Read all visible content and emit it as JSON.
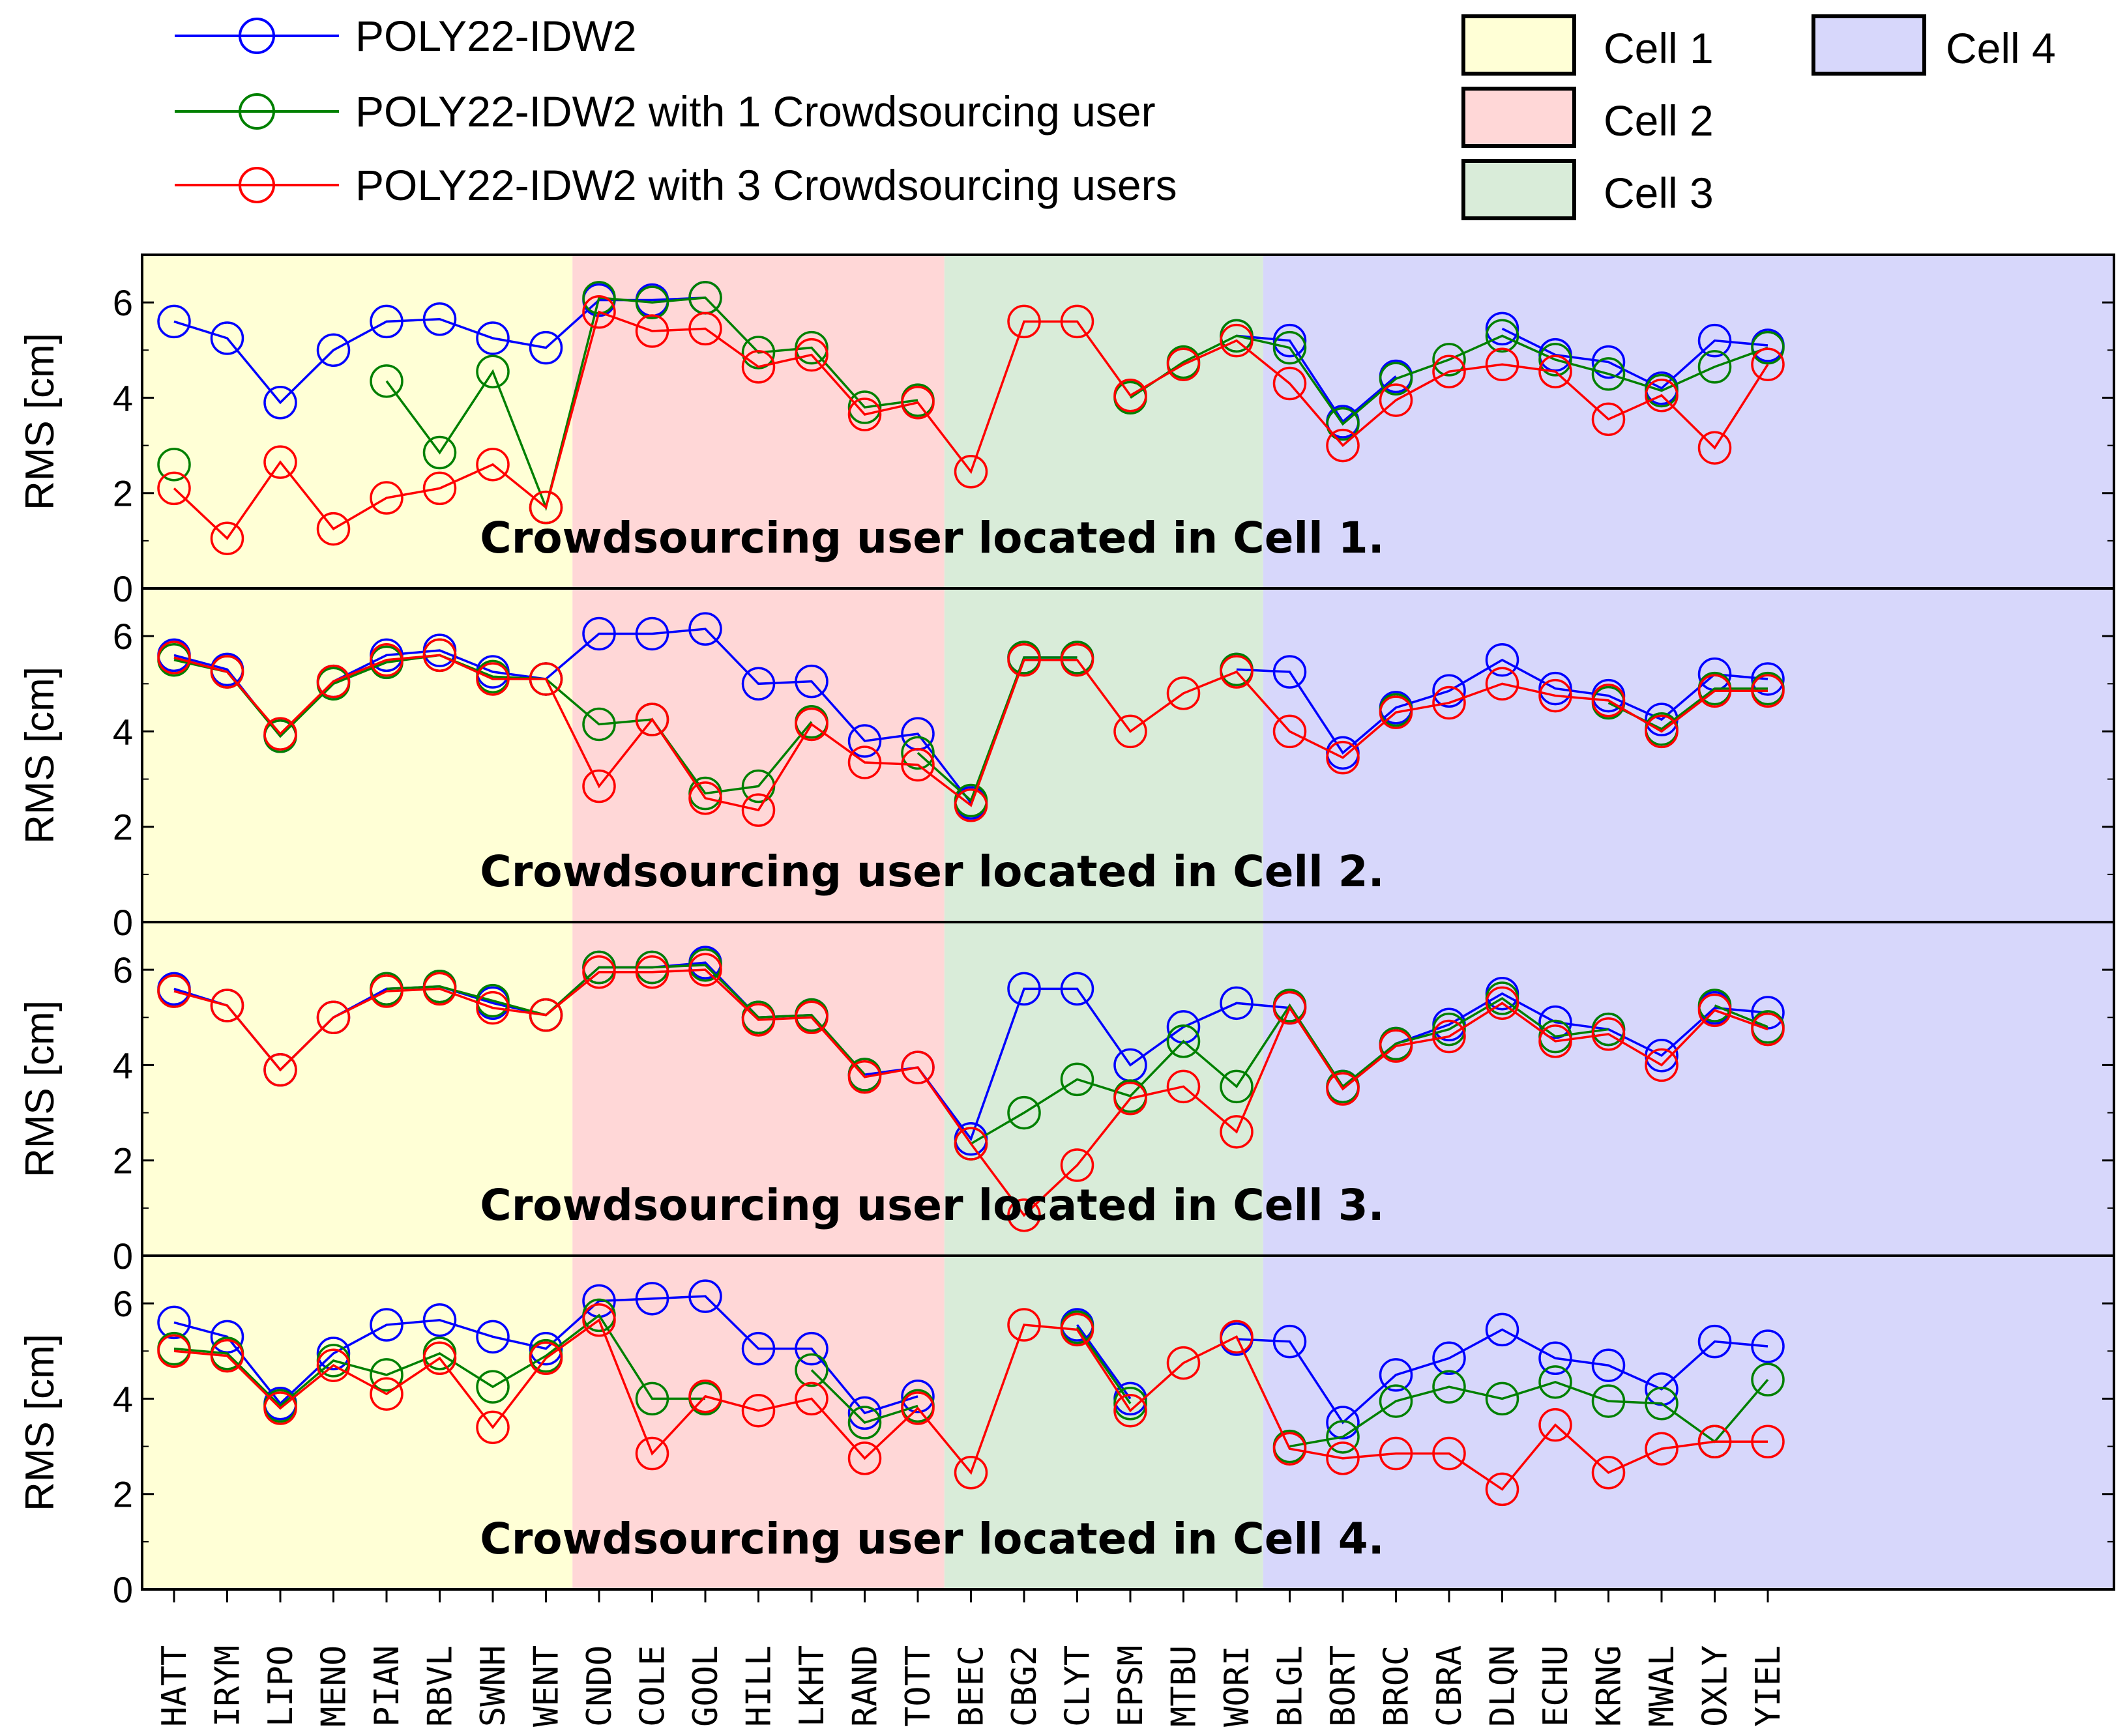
{
  "colors": {
    "series": [
      "#0000ff",
      "#008000",
      "#ff0000"
    ],
    "cells": [
      "#ffffd6",
      "#ffd7d7",
      "#d9ecd9",
      "#d7d7fb"
    ]
  },
  "legend": {
    "cells": [
      {
        "label": "Cell 1"
      },
      {
        "label": "Cell 2"
      },
      {
        "label": "Cell 3"
      },
      {
        "label": "Cell 4"
      }
    ]
  },
  "chart_data": {
    "type": "line",
    "ylabel": "RMS [cm]",
    "ylim": [
      0,
      7
    ],
    "yticks": [
      0,
      2,
      4,
      6
    ],
    "categories": [
      "HATT",
      "IRYM",
      "LIPO",
      "MENO",
      "PIAN",
      "RBVL",
      "SWNH",
      "WENT",
      "CNDO",
      "COLE",
      "GOOL",
      "HILL",
      "LKHT",
      "RAND",
      "TOTT",
      "BEEC",
      "CBG2",
      "CLYT",
      "EPSM",
      "MTBU",
      "WORI",
      "BLGL",
      "BORT",
      "BROC",
      "CBRA",
      "DLQN",
      "ECHU",
      "KRNG",
      "MWAL",
      "OXLY",
      "YIEL"
    ],
    "cell_ranges": [
      {
        "cell": "Cell 1",
        "from": "HATT",
        "to": "WENT"
      },
      {
        "cell": "Cell 2",
        "from": "CNDO",
        "to": "TOTT"
      },
      {
        "cell": "Cell 3",
        "from": "BEEC",
        "to": "WORI"
      },
      {
        "cell": "Cell 4",
        "from": "BLGL",
        "to": "YIEL"
      }
    ],
    "series_names": [
      "POLY22-IDW2",
      "POLY22-IDW2 with 1 Crowdsourcing user",
      "POLY22-IDW2 with 3 Crowdsourcing users"
    ],
    "panels": [
      {
        "annotation": "Crowdsourcing user located in Cell 1.",
        "series": [
          {
            "name": "POLY22-IDW2",
            "values": [
              5.6,
              5.25,
              3.9,
              5.0,
              5.6,
              5.65,
              5.25,
              5.05,
              6.05,
              6.05,
              6.1,
              null,
              null,
              null,
              null,
              null,
              null,
              null,
              null,
              null,
              5.3,
              5.2,
              3.5,
              4.45,
              null,
              5.45,
              4.9,
              4.75,
              4.2,
              5.2,
              5.1
            ]
          },
          {
            "name": "POLY22-IDW2 with 1 Crowdsourcing user",
            "values": [
              2.6,
              null,
              null,
              null,
              4.35,
              2.85,
              4.55,
              1.7,
              6.1,
              6.0,
              6.1,
              4.95,
              5.05,
              3.8,
              3.95,
              null,
              null,
              null,
              4.0,
              4.75,
              5.3,
              5.05,
              3.45,
              4.4,
              4.8,
              5.3,
              4.8,
              4.5,
              4.15,
              4.65,
              5.05
            ]
          },
          {
            "name": "POLY22-IDW2 with 3 Crowdsourcing users",
            "values": [
              2.1,
              1.05,
              2.65,
              1.25,
              1.9,
              2.1,
              2.6,
              1.7,
              5.8,
              5.4,
              5.45,
              4.65,
              4.9,
              3.65,
              3.9,
              2.45,
              5.6,
              5.6,
              4.05,
              4.7,
              5.2,
              4.3,
              3.0,
              3.95,
              4.55,
              4.7,
              4.55,
              3.55,
              4.05,
              2.95,
              4.7
            ]
          }
        ]
      },
      {
        "annotation": "Crowdsourcing user located in Cell 2.",
        "series": [
          {
            "name": "POLY22-IDW2",
            "values": [
              5.6,
              5.3,
              3.9,
              5.05,
              5.6,
              5.7,
              5.25,
              5.1,
              6.05,
              6.05,
              6.15,
              5.0,
              5.05,
              3.8,
              3.95,
              2.5,
              5.55,
              5.55,
              null,
              null,
              5.3,
              5.25,
              3.55,
              4.5,
              4.85,
              5.5,
              4.9,
              4.75,
              4.25,
              5.2,
              5.1
            ]
          },
          {
            "name": "POLY22-IDW2 with 1 Crowdsourcing user",
            "values": [
              5.5,
              5.25,
              3.9,
              5.0,
              5.45,
              5.6,
              5.15,
              5.1,
              4.15,
              4.25,
              2.7,
              2.85,
              4.2,
              null,
              3.55,
              2.55,
              5.55,
              5.55,
              null,
              null,
              5.3,
              null,
              null,
              4.45,
              null,
              null,
              null,
              4.6,
              4.05,
              4.9,
              4.9
            ]
          },
          {
            "name": "POLY22-IDW2 with 3 Crowdsourcing users",
            "values": [
              5.55,
              5.25,
              3.95,
              5.05,
              5.5,
              5.6,
              5.1,
              5.1,
              2.85,
              4.25,
              2.6,
              2.35,
              4.15,
              3.35,
              3.3,
              2.45,
              5.5,
              5.5,
              4.0,
              4.8,
              5.25,
              4.0,
              3.45,
              4.4,
              4.6,
              5.0,
              4.75,
              4.65,
              4.0,
              4.85,
              4.85
            ]
          }
        ]
      },
      {
        "annotation": "Crowdsourcing user located in Cell 3.",
        "series": [
          {
            "name": "POLY22-IDW2",
            "values": [
              5.6,
              5.25,
              3.9,
              5.0,
              5.6,
              5.65,
              5.3,
              5.05,
              6.05,
              6.05,
              6.15,
              5.0,
              5.05,
              3.8,
              3.95,
              2.45,
              5.6,
              5.6,
              4.0,
              4.8,
              5.3,
              5.2,
              3.55,
              4.45,
              4.85,
              5.5,
              4.9,
              4.75,
              4.2,
              5.2,
              5.1
            ]
          },
          {
            "name": "POLY22-IDW2 with 1 Crowdsourcing user",
            "values": [
              5.55,
              null,
              null,
              null,
              5.6,
              5.65,
              5.35,
              5.05,
              6.05,
              6.05,
              6.1,
              5.0,
              5.05,
              3.8,
              null,
              2.35,
              3.0,
              3.7,
              3.35,
              4.5,
              3.55,
              5.25,
              3.55,
              4.45,
              4.75,
              5.4,
              4.6,
              4.75,
              null,
              5.25,
              4.8
            ]
          },
          {
            "name": "POLY22-IDW2 with 3 Crowdsourcing users",
            "values": [
              5.55,
              5.25,
              3.9,
              5.0,
              5.55,
              5.6,
              5.2,
              5.05,
              5.95,
              5.95,
              6.0,
              4.95,
              5.0,
              3.75,
              3.95,
              2.35,
              0.85,
              1.9,
              3.3,
              3.55,
              2.6,
              5.2,
              3.5,
              4.4,
              4.6,
              5.3,
              4.5,
              4.65,
              4.0,
              5.15,
              4.75
            ]
          }
        ]
      },
      {
        "annotation": "Crowdsourcing user located in Cell 4.",
        "series": [
          {
            "name": "POLY22-IDW2",
            "values": [
              5.6,
              5.3,
              3.9,
              4.95,
              5.55,
              5.65,
              5.3,
              5.05,
              6.05,
              6.1,
              6.15,
              5.05,
              5.05,
              3.7,
              4.05,
              null,
              null,
              5.55,
              4.0,
              null,
              5.25,
              5.2,
              3.5,
              4.5,
              4.85,
              5.45,
              4.85,
              4.7,
              4.2,
              5.2,
              5.1
            ]
          },
          {
            "name": "POLY22-IDW2 with 1 Crowdsourcing user",
            "values": [
              5.05,
              4.95,
              3.85,
              4.8,
              4.5,
              4.95,
              4.25,
              4.9,
              5.75,
              4.0,
              4.0,
              null,
              4.6,
              3.5,
              3.85,
              null,
              null,
              5.5,
              3.9,
              null,
              null,
              3.0,
              3.2,
              3.95,
              4.25,
              4.0,
              4.35,
              3.95,
              3.9,
              3.1,
              4.4
            ]
          },
          {
            "name": "POLY22-IDW2 with 3 Crowdsourcing users",
            "values": [
              5.0,
              4.9,
              3.8,
              4.7,
              4.1,
              4.85,
              3.4,
              4.85,
              5.65,
              2.85,
              4.05,
              3.75,
              4.0,
              2.75,
              3.8,
              2.45,
              5.55,
              5.45,
              3.75,
              4.75,
              5.3,
              2.95,
              2.75,
              2.85,
              2.85,
              2.1,
              3.45,
              2.45,
              2.95,
              3.1,
              3.1
            ]
          }
        ]
      }
    ]
  }
}
